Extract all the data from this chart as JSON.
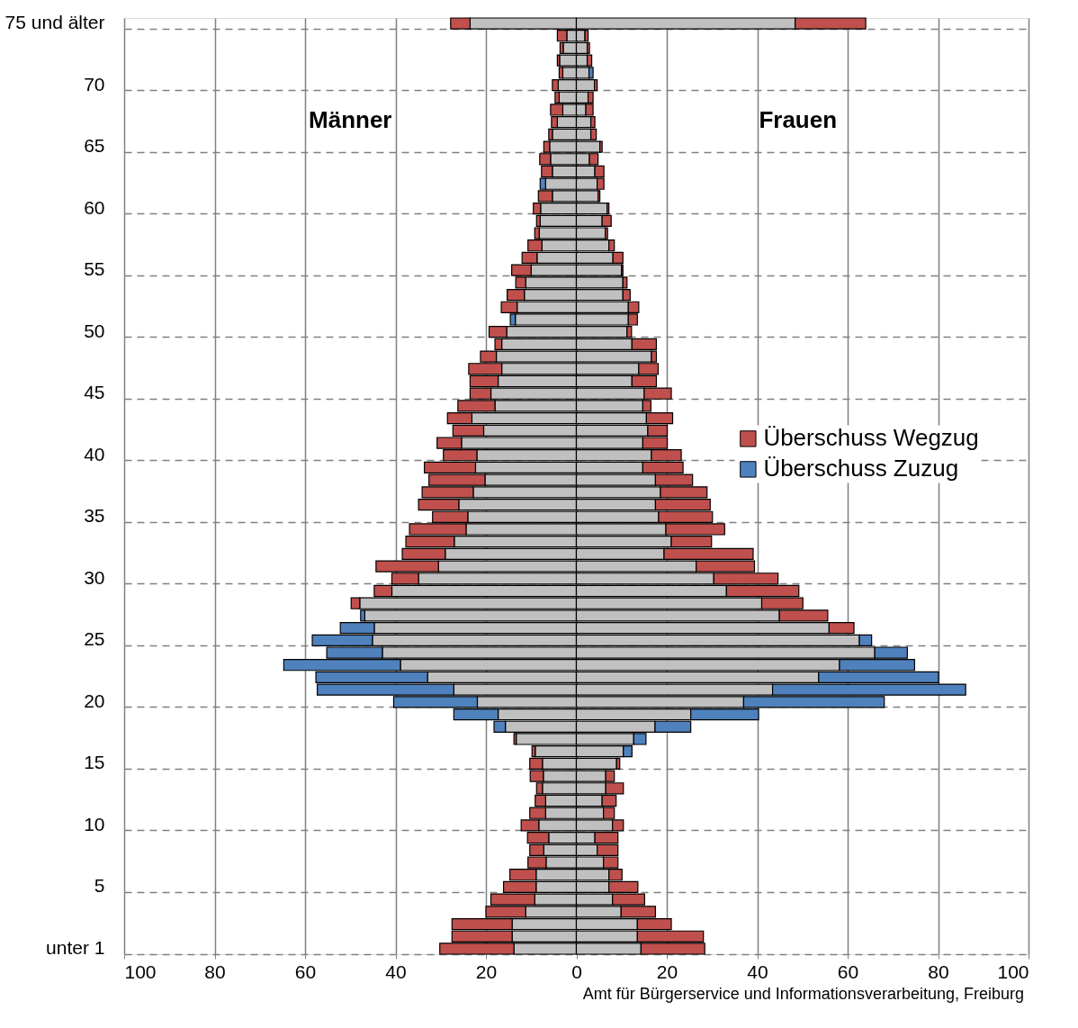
{
  "chart_data": {
    "type": "bar",
    "orientation": "horizontal",
    "stacked": true,
    "categories": [
      "75 und älter",
      null,
      null,
      null,
      null,
      "70",
      null,
      null,
      null,
      null,
      "65",
      null,
      null,
      null,
      null,
      "60",
      null,
      null,
      null,
      null,
      "55",
      null,
      null,
      null,
      null,
      "50",
      null,
      null,
      null,
      null,
      "45",
      null,
      null,
      null,
      null,
      "40",
      null,
      null,
      null,
      null,
      "35",
      null,
      null,
      null,
      null,
      "30",
      null,
      null,
      null,
      null,
      "25",
      null,
      null,
      null,
      null,
      "20",
      null,
      null,
      null,
      null,
      "15",
      null,
      null,
      null,
      null,
      "10",
      null,
      null,
      null,
      null,
      "5",
      null,
      null,
      null,
      null,
      "unter 1"
    ],
    "series": [
      {
        "color": "#c0c0c0",
        "values": [
          -23.5,
          -2.1,
          -2.9,
          -3.7,
          -3.0,
          -4.0,
          -3.8,
          -3.0,
          -4.2,
          -5.3,
          -5.9,
          -5.7,
          -5.3,
          -6.8,
          -5.3,
          -7.9,
          -8.0,
          -8.2,
          -7.6,
          -8.7,
          -10.0,
          -11.2,
          -11.5,
          -13.1,
          -13.5,
          -15.4,
          -16.5,
          -17.7,
          -16.5,
          -17.3,
          -18.9,
          -18.0,
          -23.1,
          -20.5,
          -25.4,
          -22.0,
          -22.3,
          -20.2,
          -22.8,
          -26.0,
          -24.0,
          -24.4,
          -27.0,
          -29.0,
          -30.5,
          -34.9,
          -40.8,
          -47.9,
          -46.8,
          -44.7,
          -45.1,
          -42.9,
          -38.9,
          -32.9,
          -27.1,
          -21.9,
          -17.3,
          -15.7,
          -13.3,
          -9.1,
          -7.5,
          -7.3,
          -7.5,
          -6.8,
          -6.8,
          -8.3,
          -6.1,
          -7.2,
          -6.7,
          -8.9,
          -8.9,
          -9.2,
          -11.2,
          -14.2,
          -14.2,
          -13.8
        ]
      },
      {
        "name": "Überschuss Wegzug",
        "color": "#c0504d",
        "values": [
          -4.3,
          -2.1,
          -0.7,
          -0.5,
          -0.8,
          -1.3,
          -0.9,
          -2.7,
          -1.3,
          -0.8,
          -1.3,
          -2.4,
          -2.4,
          null,
          -3.1,
          -1.6,
          -0.8,
          -1.0,
          -3.1,
          -3.3,
          -4.3,
          -2.2,
          -3.8,
          -3.5,
          null,
          -3.9,
          -1.5,
          -3.5,
          -7.3,
          -6.2,
          -4.6,
          -8.2,
          -5.4,
          -6.8,
          -5.4,
          -7.4,
          -11.3,
          -12.4,
          -11.3,
          -8.9,
          -7.8,
          -12.5,
          -10.7,
          -9.5,
          -13.8,
          -5.9,
          -3.9,
          -1.9,
          null,
          null,
          null,
          null,
          null,
          null,
          null,
          null,
          null,
          null,
          -0.5,
          -0.7,
          -2.8,
          -2.9,
          -1.3,
          -2.3,
          -3.5,
          -3.9,
          -4.7,
          -3.1,
          -4.0,
          -5.8,
          -7.2,
          -9.7,
          -8.8,
          -13.3,
          -13.3,
          -16.4
        ]
      },
      {
        "name": "Überschuss Zuzug",
        "color": "#4f81bd",
        "values": [
          null,
          null,
          null,
          null,
          null,
          null,
          null,
          null,
          null,
          null,
          null,
          null,
          null,
          -1.2,
          null,
          null,
          null,
          null,
          null,
          null,
          null,
          null,
          null,
          null,
          -1.1,
          null,
          null,
          null,
          null,
          null,
          null,
          null,
          null,
          null,
          null,
          null,
          null,
          null,
          null,
          null,
          null,
          null,
          null,
          null,
          null,
          null,
          null,
          null,
          -0.9,
          -7.5,
          -13.3,
          -12.3,
          -25.8,
          -24.7,
          -30.2,
          -18.5,
          -9.8,
          -2.5,
          null,
          null,
          null,
          null,
          null,
          null,
          null,
          null,
          null,
          null,
          null,
          null,
          null,
          null,
          null,
          null,
          null,
          null
        ]
      },
      {
        "color": "#c0c0c0",
        "values": [
          48.4,
          1.9,
          2.4,
          2.4,
          2.8,
          4.0,
          2.6,
          2.1,
          3.2,
          3.2,
          5.2,
          2.9,
          4.1,
          4.6,
          4.8,
          6.8,
          5.7,
          6.4,
          7.2,
          8.1,
          10.0,
          10.3,
          10.3,
          11.5,
          11.5,
          11.2,
          12.3,
          16.6,
          13.8,
          12.3,
          15.0,
          14.7,
          15.5,
          15.8,
          14.7,
          16.6,
          14.7,
          17.5,
          18.6,
          17.5,
          18.2,
          19.8,
          21.0,
          19.4,
          26.5,
          30.4,
          33.2,
          41.0,
          44.9,
          55.9,
          62.6,
          66.0,
          58.2,
          53.6,
          43.4,
          37.0,
          25.3,
          17.4,
          12.7,
          10.4,
          8.9,
          6.5,
          6.5,
          5.7,
          6.0,
          8.0,
          4.1,
          4.6,
          6.0,
          7.2,
          7.2,
          8.0,
          9.9,
          13.5,
          13.5,
          14.3
        ]
      },
      {
        "color": "#c0504d",
        "values": [
          15.6,
          0.7,
          0.5,
          1.0,
          null,
          0.6,
          1.1,
          1.6,
          0.9,
          1.2,
          0.5,
          1.9,
          2.0,
          1.5,
          0.4,
          0.4,
          2.0,
          0.5,
          1.2,
          2.2,
          0.3,
          0.9,
          1.6,
          2.3,
          2.0,
          1.0,
          5.4,
          1.1,
          4.3,
          5.4,
          6.0,
          1.8,
          5.8,
          4.3,
          5.4,
          6.6,
          8.9,
          8.2,
          10.3,
          12.1,
          11.9,
          13.0,
          8.9,
          19.7,
          12.9,
          14.2,
          16.0,
          9.1,
          10.7,
          5.5,
          null,
          null,
          null,
          null,
          null,
          null,
          null,
          null,
          null,
          null,
          0.7,
          1.9,
          3.9,
          3.1,
          2.4,
          2.4,
          5.1,
          4.6,
          3.2,
          2.9,
          6.4,
          7.1,
          7.6,
          7.5,
          14.6,
          14.1
        ]
      },
      {
        "color": "#4f81bd",
        "values": [
          null,
          null,
          null,
          null,
          0.9,
          null,
          null,
          null,
          null,
          null,
          null,
          null,
          null,
          null,
          null,
          null,
          null,
          null,
          null,
          null,
          null,
          null,
          null,
          null,
          null,
          null,
          null,
          null,
          null,
          null,
          null,
          null,
          null,
          null,
          null,
          null,
          null,
          null,
          null,
          null,
          null,
          null,
          null,
          null,
          null,
          null,
          null,
          null,
          null,
          null,
          2.7,
          7.2,
          16.6,
          26.5,
          42.7,
          31.1,
          15.0,
          7.9,
          2.7,
          1.9,
          null,
          null,
          null,
          null,
          null,
          null,
          null,
          null,
          null,
          null,
          null,
          null,
          null,
          null,
          null,
          null
        ]
      }
    ],
    "xlim": [
      -100,
      100
    ],
    "xticks": [
      {
        "value": -100,
        "label": "100"
      },
      {
        "value": -80,
        "label": "80"
      },
      {
        "value": -60,
        "label": "60"
      },
      {
        "value": -40,
        "label": "40"
      },
      {
        "value": -20,
        "label": "20"
      },
      0,
      20,
      40,
      60,
      80,
      100
    ],
    "annotations": [
      "Männer",
      "Frauen",
      "Amt für Bürgerservice und Informationsverarbeitung, Freiburg"
    ],
    "grid": true,
    "legend": "right"
  }
}
